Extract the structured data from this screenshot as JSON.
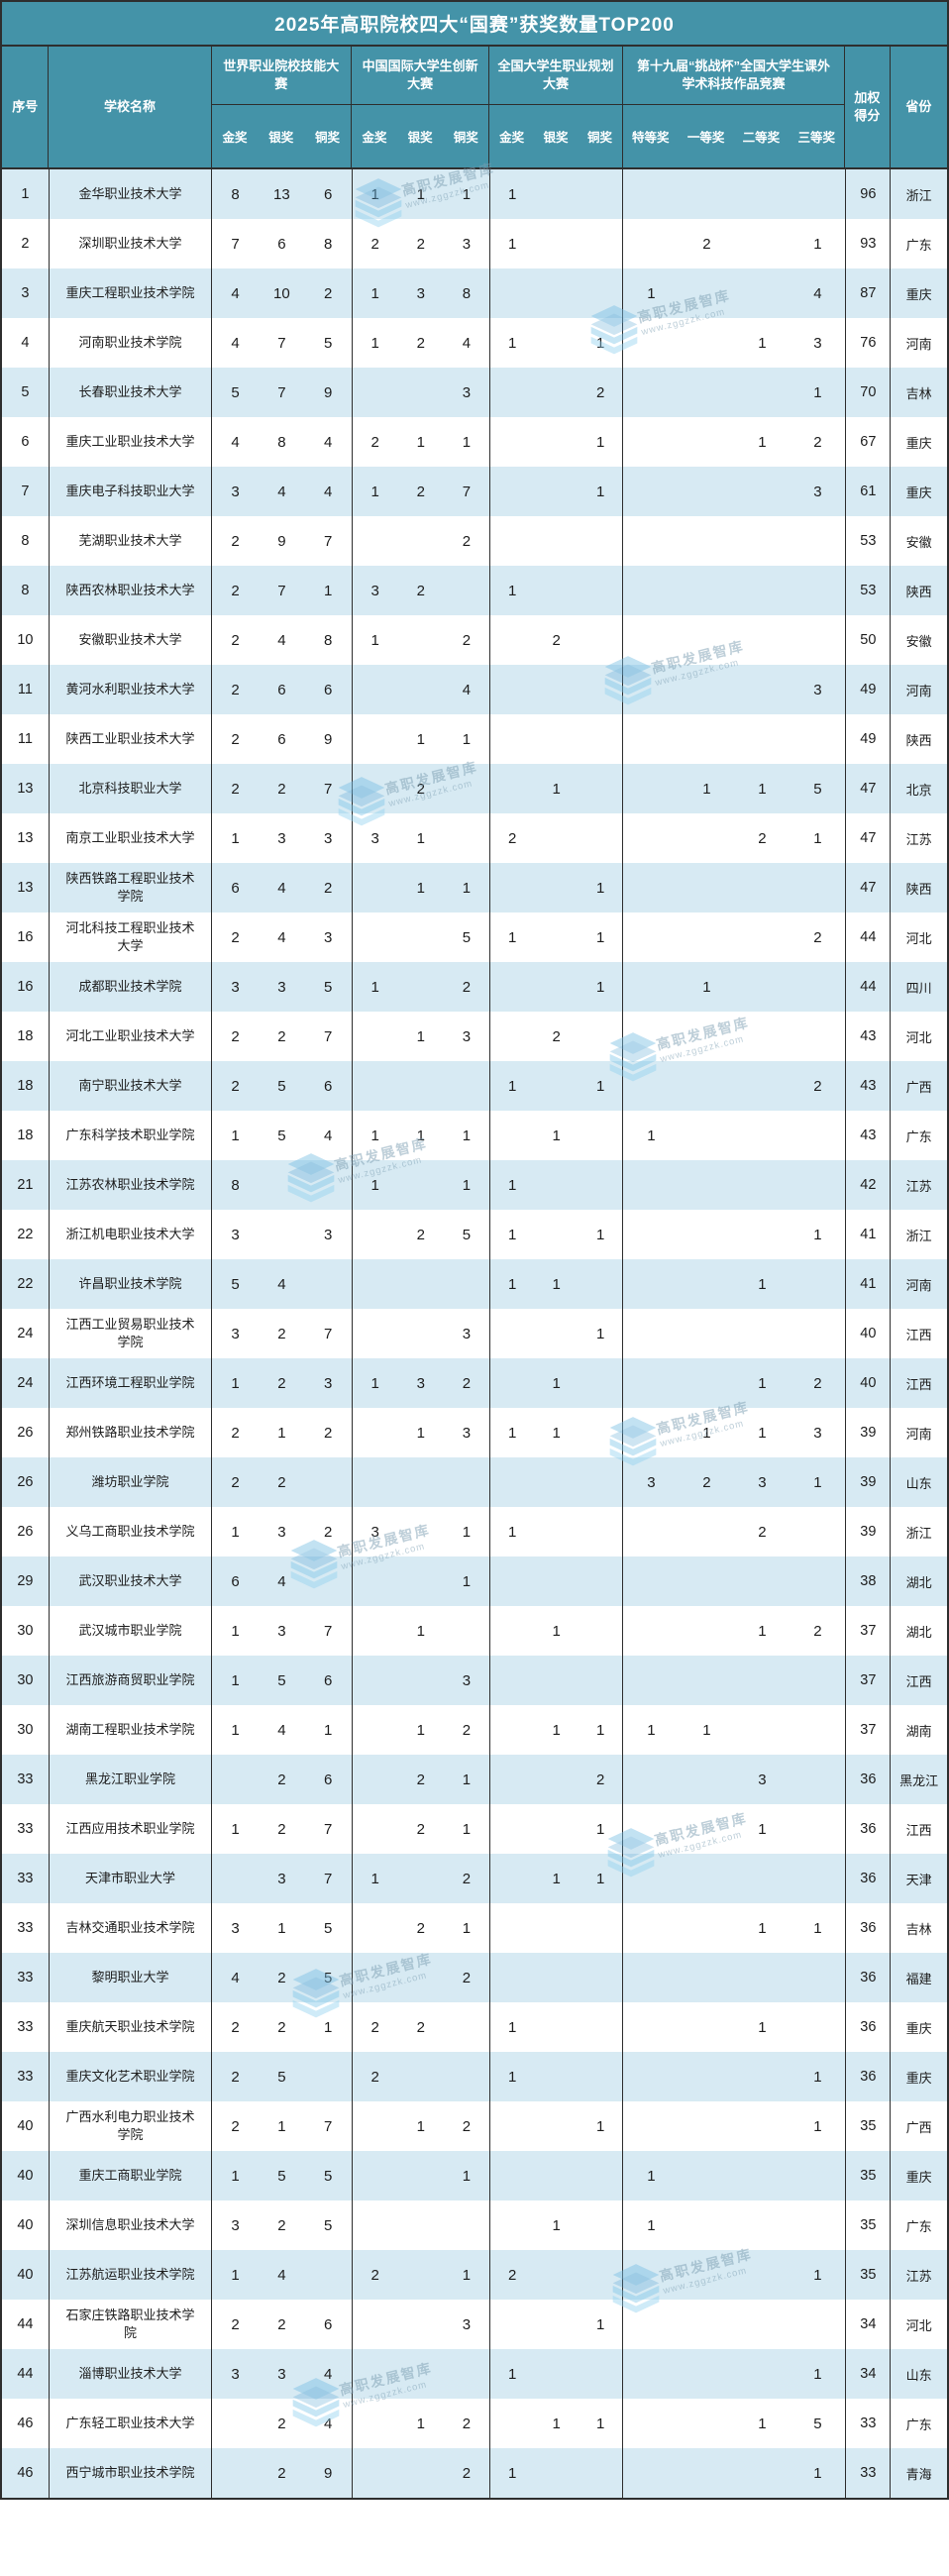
{
  "title": "2025年高职院校四大“国赛”获奖数量TOP200",
  "header": {
    "seq": "序号",
    "school": "学校名称",
    "score_line1": "加权",
    "score_line2": "得分",
    "province": "省份",
    "competitions": [
      {
        "name": "世界职业院校技能大赛",
        "medals": [
          "金奖",
          "银奖",
          "铜奖"
        ]
      },
      {
        "name": "中国国际大学生创新大赛",
        "medals": [
          "金奖",
          "银奖",
          "铜奖"
        ]
      },
      {
        "name": "全国大学生职业规划大赛",
        "medals": [
          "金奖",
          "银奖",
          "铜奖"
        ]
      },
      {
        "name": "第十九届“挑战杯”全国大学生课外学术科技作品竞赛",
        "medals": [
          "特等奖",
          "一等奖",
          "二等奖",
          "三等奖"
        ]
      }
    ]
  },
  "watermark": {
    "text": "高职发展智库",
    "url": "www.zggzzk.com"
  },
  "colors": {
    "header_teal": "#4493a8",
    "row_light": "#d7eaf3",
    "row_white": "#ffffff",
    "border": "#2e2e2e"
  },
  "rows": [
    {
      "rank": "1",
      "school": "金华职业技术大学",
      "values": [
        "8",
        "13",
        "6",
        "1",
        "1",
        "1",
        "1",
        "",
        "",
        "",
        "",
        "",
        ""
      ],
      "score": "96",
      "province": "浙江"
    },
    {
      "rank": "2",
      "school": "深圳职业技术大学",
      "values": [
        "7",
        "6",
        "8",
        "2",
        "2",
        "3",
        "1",
        "",
        "",
        "",
        "2",
        "",
        "1"
      ],
      "score": "93",
      "province": "广东"
    },
    {
      "rank": "3",
      "school": "重庆工程职业技术学院",
      "values": [
        "4",
        "10",
        "2",
        "1",
        "3",
        "8",
        "",
        "",
        "",
        "1",
        "",
        "",
        "4"
      ],
      "score": "87",
      "province": "重庆"
    },
    {
      "rank": "4",
      "school": "河南职业技术学院",
      "values": [
        "4",
        "7",
        "5",
        "1",
        "2",
        "4",
        "1",
        "",
        "1",
        "",
        "",
        "1",
        "3"
      ],
      "score": "76",
      "province": "河南"
    },
    {
      "rank": "5",
      "school": "长春职业技术大学",
      "values": [
        "5",
        "7",
        "9",
        "",
        "",
        "3",
        "",
        "",
        "2",
        "",
        "",
        "",
        "1"
      ],
      "score": "70",
      "province": "吉林"
    },
    {
      "rank": "6",
      "school": "重庆工业职业技术大学",
      "values": [
        "4",
        "8",
        "4",
        "2",
        "1",
        "1",
        "",
        "",
        "1",
        "",
        "",
        "1",
        "2"
      ],
      "score": "67",
      "province": "重庆"
    },
    {
      "rank": "7",
      "school": "重庆电子科技职业大学",
      "values": [
        "3",
        "4",
        "4",
        "1",
        "2",
        "7",
        "",
        "",
        "1",
        "",
        "",
        "",
        "3"
      ],
      "score": "61",
      "province": "重庆"
    },
    {
      "rank": "8",
      "school": "芜湖职业技术大学",
      "values": [
        "2",
        "9",
        "7",
        "",
        "",
        "2",
        "",
        "",
        "",
        "",
        "",
        "",
        ""
      ],
      "score": "53",
      "province": "安徽"
    },
    {
      "rank": "8",
      "school": "陕西农林职业技术大学",
      "values": [
        "2",
        "7",
        "1",
        "3",
        "2",
        "",
        "1",
        "",
        "",
        "",
        "",
        "",
        ""
      ],
      "score": "53",
      "province": "陕西"
    },
    {
      "rank": "10",
      "school": "安徽职业技术大学",
      "values": [
        "2",
        "4",
        "8",
        "1",
        "",
        "2",
        "",
        "2",
        "",
        "",
        "",
        "",
        ""
      ],
      "score": "50",
      "province": "安徽"
    },
    {
      "rank": "11",
      "school": "黄河水利职业技术大学",
      "values": [
        "2",
        "6",
        "6",
        "",
        "",
        "4",
        "",
        "",
        "",
        "",
        "",
        "",
        "3"
      ],
      "score": "49",
      "province": "河南"
    },
    {
      "rank": "11",
      "school": "陕西工业职业技术大学",
      "values": [
        "2",
        "6",
        "9",
        "",
        "1",
        "1",
        "",
        "",
        "",
        "",
        "",
        "",
        ""
      ],
      "score": "49",
      "province": "陕西"
    },
    {
      "rank": "13",
      "school": "北京科技职业大学",
      "values": [
        "2",
        "2",
        "7",
        "",
        "2",
        "",
        "",
        "1",
        "",
        "",
        "1",
        "1",
        "5"
      ],
      "score": "47",
      "province": "北京"
    },
    {
      "rank": "13",
      "school": "南京工业职业技术大学",
      "values": [
        "1",
        "3",
        "3",
        "3",
        "1",
        "",
        "2",
        "",
        "",
        "",
        "",
        "2",
        "1"
      ],
      "score": "47",
      "province": "江苏"
    },
    {
      "rank": "13",
      "school": "陕西铁路工程职业技术学院",
      "values": [
        "6",
        "4",
        "2",
        "",
        "1",
        "1",
        "",
        "",
        "1",
        "",
        "",
        "",
        ""
      ],
      "score": "47",
      "province": "陕西"
    },
    {
      "rank": "16",
      "school": "河北科技工程职业技术大学",
      "values": [
        "2",
        "4",
        "3",
        "",
        "",
        "5",
        "1",
        "",
        "1",
        "",
        "",
        "",
        "2"
      ],
      "score": "44",
      "province": "河北"
    },
    {
      "rank": "16",
      "school": "成都职业技术学院",
      "values": [
        "3",
        "3",
        "5",
        "1",
        "",
        "2",
        "",
        "",
        "1",
        "",
        "1",
        "",
        ""
      ],
      "score": "44",
      "province": "四川"
    },
    {
      "rank": "18",
      "school": "河北工业职业技术大学",
      "values": [
        "2",
        "2",
        "7",
        "",
        "1",
        "3",
        "",
        "2",
        "",
        "",
        "",
        "",
        ""
      ],
      "score": "43",
      "province": "河北"
    },
    {
      "rank": "18",
      "school": "南宁职业技术大学",
      "values": [
        "2",
        "5",
        "6",
        "",
        "",
        "",
        "1",
        "",
        "1",
        "",
        "",
        "",
        "2"
      ],
      "score": "43",
      "province": "广西"
    },
    {
      "rank": "18",
      "school": "广东科学技术职业学院",
      "values": [
        "1",
        "5",
        "4",
        "1",
        "1",
        "1",
        "",
        "1",
        "",
        "1",
        "",
        "",
        ""
      ],
      "score": "43",
      "province": "广东"
    },
    {
      "rank": "21",
      "school": "江苏农林职业技术学院",
      "values": [
        "8",
        "",
        "",
        "1",
        "",
        "1",
        "1",
        "",
        "",
        "",
        "",
        "",
        ""
      ],
      "score": "42",
      "province": "江苏"
    },
    {
      "rank": "22",
      "school": "浙江机电职业技术大学",
      "values": [
        "3",
        "",
        "3",
        "",
        "2",
        "5",
        "1",
        "",
        "1",
        "",
        "",
        "",
        "1"
      ],
      "score": "41",
      "province": "浙江"
    },
    {
      "rank": "22",
      "school": "许昌职业技术学院",
      "values": [
        "5",
        "4",
        "",
        "",
        "",
        "",
        "1",
        "1",
        "",
        "",
        "",
        "1",
        ""
      ],
      "score": "41",
      "province": "河南"
    },
    {
      "rank": "24",
      "school": "江西工业贸易职业技术学院",
      "values": [
        "3",
        "2",
        "7",
        "",
        "",
        "3",
        "",
        "",
        "1",
        "",
        "",
        "",
        ""
      ],
      "score": "40",
      "province": "江西"
    },
    {
      "rank": "24",
      "school": "江西环境工程职业学院",
      "values": [
        "1",
        "2",
        "3",
        "1",
        "3",
        "2",
        "",
        "1",
        "",
        "",
        "",
        "1",
        "2"
      ],
      "score": "40",
      "province": "江西"
    },
    {
      "rank": "26",
      "school": "郑州铁路职业技术学院",
      "values": [
        "2",
        "1",
        "2",
        "",
        "1",
        "3",
        "1",
        "1",
        "",
        "",
        "1",
        "1",
        "3"
      ],
      "score": "39",
      "province": "河南"
    },
    {
      "rank": "26",
      "school": "潍坊职业学院",
      "values": [
        "2",
        "2",
        "",
        "",
        "",
        "",
        "",
        "",
        "",
        "3",
        "2",
        "3",
        "1"
      ],
      "score": "39",
      "province": "山东"
    },
    {
      "rank": "26",
      "school": "义乌工商职业技术学院",
      "values": [
        "1",
        "3",
        "2",
        "3",
        "",
        "1",
        "1",
        "",
        "",
        "",
        "",
        "2",
        ""
      ],
      "score": "39",
      "province": "浙江"
    },
    {
      "rank": "29",
      "school": "武汉职业技术大学",
      "values": [
        "6",
        "4",
        "",
        "",
        "",
        "1",
        "",
        "",
        "",
        "",
        "",
        "",
        ""
      ],
      "score": "38",
      "province": "湖北"
    },
    {
      "rank": "30",
      "school": "武汉城市职业学院",
      "values": [
        "1",
        "3",
        "7",
        "",
        "1",
        "",
        "",
        "1",
        "",
        "",
        "",
        "1",
        "2"
      ],
      "score": "37",
      "province": "湖北"
    },
    {
      "rank": "30",
      "school": "江西旅游商贸职业学院",
      "values": [
        "1",
        "5",
        "6",
        "",
        "",
        "3",
        "",
        "",
        "",
        "",
        "",
        "",
        ""
      ],
      "score": "37",
      "province": "江西"
    },
    {
      "rank": "30",
      "school": "湖南工程职业技术学院",
      "values": [
        "1",
        "4",
        "1",
        "",
        "1",
        "2",
        "",
        "1",
        "1",
        "1",
        "1",
        "",
        ""
      ],
      "score": "37",
      "province": "湖南"
    },
    {
      "rank": "33",
      "school": "黑龙江职业学院",
      "values": [
        "",
        "2",
        "6",
        "",
        "2",
        "1",
        "",
        "",
        "2",
        "",
        "",
        "3",
        ""
      ],
      "score": "36",
      "province": "黑龙江"
    },
    {
      "rank": "33",
      "school": "江西应用技术职业学院",
      "values": [
        "1",
        "2",
        "7",
        "",
        "2",
        "1",
        "",
        "",
        "1",
        "",
        "",
        "1",
        ""
      ],
      "score": "36",
      "province": "江西"
    },
    {
      "rank": "33",
      "school": "天津市职业大学",
      "values": [
        "",
        "3",
        "7",
        "1",
        "",
        "2",
        "",
        "1",
        "1",
        "",
        "",
        "",
        ""
      ],
      "score": "36",
      "province": "天津"
    },
    {
      "rank": "33",
      "school": "吉林交通职业技术学院",
      "values": [
        "3",
        "1",
        "5",
        "",
        "2",
        "1",
        "",
        "",
        "",
        "",
        "",
        "1",
        "1"
      ],
      "score": "36",
      "province": "吉林"
    },
    {
      "rank": "33",
      "school": "黎明职业大学",
      "values": [
        "4",
        "2",
        "5",
        "",
        "",
        "2",
        "",
        "",
        "",
        "",
        "",
        "",
        ""
      ],
      "score": "36",
      "province": "福建"
    },
    {
      "rank": "33",
      "school": "重庆航天职业技术学院",
      "values": [
        "2",
        "2",
        "1",
        "2",
        "2",
        "",
        "1",
        "",
        "",
        "",
        "",
        "1",
        ""
      ],
      "score": "36",
      "province": "重庆"
    },
    {
      "rank": "33",
      "school": "重庆文化艺术职业学院",
      "values": [
        "2",
        "5",
        "",
        "2",
        "",
        "",
        "1",
        "",
        "",
        "",
        "",
        "",
        "1"
      ],
      "score": "36",
      "province": "重庆"
    },
    {
      "rank": "40",
      "school": "广西水利电力职业技术学院",
      "values": [
        "2",
        "1",
        "7",
        "",
        "1",
        "2",
        "",
        "",
        "1",
        "",
        "",
        "",
        "1"
      ],
      "score": "35",
      "province": "广西"
    },
    {
      "rank": "40",
      "school": "重庆工商职业学院",
      "values": [
        "1",
        "5",
        "5",
        "",
        "",
        "1",
        "",
        "",
        "",
        "1",
        "",
        "",
        ""
      ],
      "score": "35",
      "province": "重庆"
    },
    {
      "rank": "40",
      "school": "深圳信息职业技术大学",
      "values": [
        "3",
        "2",
        "5",
        "",
        "",
        "",
        "",
        "1",
        "",
        "1",
        "",
        "",
        ""
      ],
      "score": "35",
      "province": "广东"
    },
    {
      "rank": "40",
      "school": "江苏航运职业技术学院",
      "values": [
        "1",
        "4",
        "",
        "2",
        "",
        "1",
        "2",
        "",
        "",
        "",
        "",
        "",
        "1"
      ],
      "score": "35",
      "province": "江苏"
    },
    {
      "rank": "44",
      "school": "石家庄铁路职业技术学院",
      "values": [
        "2",
        "2",
        "6",
        "",
        "",
        "3",
        "",
        "",
        "1",
        "",
        "",
        "",
        ""
      ],
      "score": "34",
      "province": "河北"
    },
    {
      "rank": "44",
      "school": "淄博职业技术大学",
      "values": [
        "3",
        "3",
        "4",
        "",
        "",
        "",
        "1",
        "",
        "",
        "",
        "",
        "",
        "1"
      ],
      "score": "34",
      "province": "山东"
    },
    {
      "rank": "46",
      "school": "广东轻工职业技术大学",
      "values": [
        "",
        "2",
        "4",
        "",
        "1",
        "2",
        "",
        "1",
        "1",
        "",
        "",
        "1",
        "5"
      ],
      "score": "33",
      "province": "广东"
    },
    {
      "rank": "46",
      "school": "西宁城市职业技术学院",
      "values": [
        "",
        "2",
        "9",
        "",
        "",
        "2",
        "1",
        "",
        "",
        "",
        "",
        "",
        "1"
      ],
      "score": "33",
      "province": "青海"
    }
  ]
}
